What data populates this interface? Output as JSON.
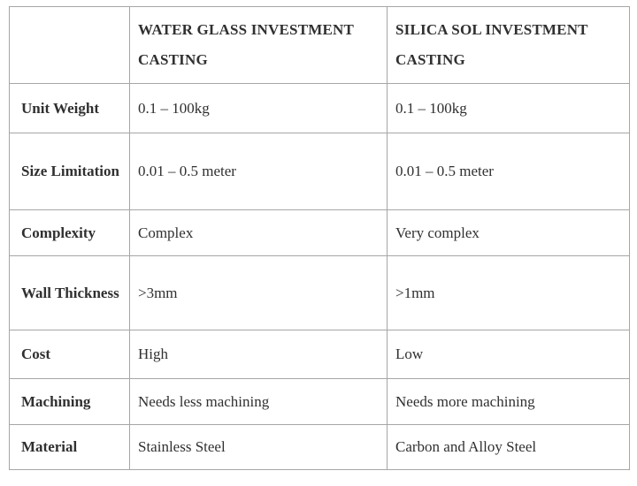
{
  "table": {
    "columns": [
      "",
      "WATER GLASS INVESTMENT CASTING",
      "SILICA SOL INVESTMENT CASTING"
    ],
    "rows": [
      {
        "label": "Unit Weight",
        "water_glass": "0.1 – 100kg",
        "silica_sol": "0.1 – 100kg"
      },
      {
        "label": "Size Limitation",
        "water_glass": "0.01 – 0.5 meter",
        "silica_sol": "0.01 – 0.5 meter"
      },
      {
        "label": "Complexity",
        "water_glass": "Complex",
        "silica_sol": "Very complex"
      },
      {
        "label": "Wall Thickness",
        "water_glass": ">3mm",
        "silica_sol": ">1mm"
      },
      {
        "label": "Cost",
        "water_glass": "High",
        "silica_sol": "Low"
      },
      {
        "label": "Machining",
        "water_glass": "Needs less machining",
        "silica_sol": "Needs more machining"
      },
      {
        "label": "Material",
        "water_glass": "Stainless Steel",
        "silica_sol": "Carbon and Alloy Steel"
      }
    ]
  },
  "colors": {
    "border": "#a6a6a6",
    "text": "#303030",
    "background": "#ffffff"
  }
}
